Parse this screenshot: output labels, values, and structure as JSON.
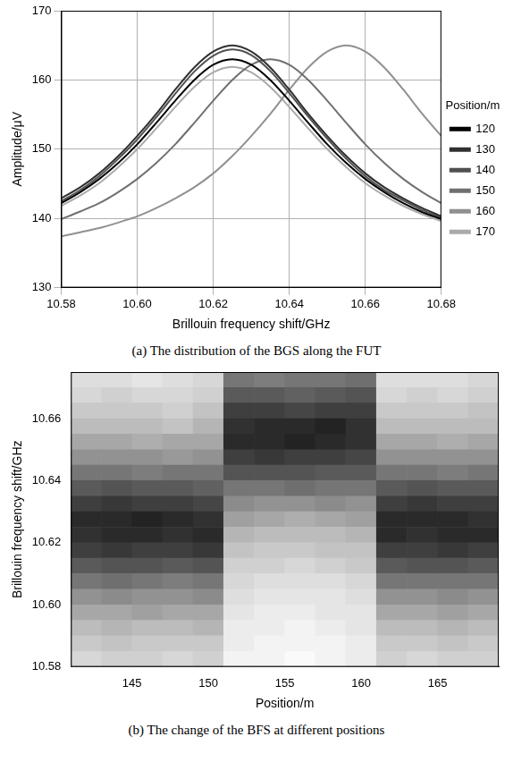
{
  "chart_data": [
    {
      "type": "line",
      "caption": "(a) The distribution of the BGS along the FUT",
      "x_label": "Brillouin frequency shift/GHz",
      "y_label": "Amplitude/μV",
      "legend_title": "Position/m",
      "legend": "right",
      "grid": true,
      "xlim": [
        10.58,
        10.68
      ],
      "xticks": [
        10.58,
        {
          "value": 10.6,
          "label": "10.60"
        },
        10.62,
        10.64,
        10.66,
        10.68
      ],
      "ylim": [
        130,
        170
      ],
      "yticks": [
        130,
        140,
        150,
        160,
        170
      ],
      "x": [
        10.58,
        10.585,
        10.59,
        10.595,
        10.6,
        10.605,
        10.61,
        10.615,
        10.62,
        10.625,
        10.63,
        10.635,
        10.64,
        10.645,
        10.65,
        10.655,
        10.66,
        10.665,
        10.67,
        10.675,
        10.68
      ],
      "series": [
        {
          "name": "120",
          "color": "#000000",
          "values": [
            142.2,
            143.8,
            145.7,
            148,
            150.7,
            153.8,
            157,
            160,
            162.2,
            163,
            162.2,
            160,
            157,
            153.8,
            150.7,
            148,
            145.7,
            143.8,
            142.2,
            140.9,
            139.9
          ]
        },
        {
          "name": "130",
          "color": "#303030",
          "values": [
            142.9,
            144.5,
            146.5,
            149,
            151.9,
            155.1,
            158.6,
            161.8,
            164.1,
            165,
            164.1,
            161.8,
            158.6,
            155.1,
            151.9,
            149,
            146.5,
            144.5,
            142.9,
            141.5,
            140.3
          ]
        },
        {
          "name": "140",
          "color": "#505050",
          "values": [
            142.5,
            144.1,
            146.1,
            148.6,
            151.4,
            154.6,
            158,
            161.2,
            163.5,
            164.4,
            163.6,
            161.3,
            158.1,
            154.7,
            151.5,
            148.6,
            146.1,
            144.1,
            142.6,
            141.2,
            140.1
          ]
        },
        {
          "name": "150",
          "color": "#707070",
          "values": [
            139.9,
            141,
            142.2,
            143.8,
            145.7,
            148,
            150.7,
            153.8,
            157,
            160,
            162.2,
            163,
            162.2,
            160,
            157,
            153.8,
            150.7,
            148,
            145.7,
            143.8,
            142.2
          ]
        },
        {
          "name": "160",
          "color": "#909090",
          "values": [
            137.4,
            138,
            138.6,
            139.4,
            140.3,
            141.5,
            142.9,
            144.5,
            146.5,
            149,
            151.9,
            155.1,
            158.6,
            161.8,
            164.1,
            165,
            164.1,
            161.8,
            158.6,
            155.1,
            151.9
          ]
        },
        {
          "name": "170",
          "color": "#aaaaaa",
          "values": [
            141.8,
            143.3,
            145.1,
            147.4,
            150,
            153,
            156.1,
            159,
            161.1,
            161.9,
            161.1,
            159,
            156.1,
            153,
            150,
            147.4,
            145.1,
            143.3,
            141.8,
            140.6,
            139.6
          ]
        }
      ]
    },
    {
      "type": "heatmap",
      "caption": "(b) The change of the BFS at different positions",
      "x_label": "Position/m",
      "y_label": "Brillouin frequency shift/GHz",
      "grid": false,
      "xlim": [
        141,
        169
      ],
      "xticks": [
        145,
        150,
        155,
        160,
        165
      ],
      "ylim": [
        10.58,
        10.675
      ],
      "yticks": [
        10.58,
        {
          "value": 10.6,
          "label": "10.60"
        },
        10.62,
        10.64,
        10.66
      ],
      "x": [
        142,
        144,
        146,
        148,
        150,
        152,
        154,
        156,
        158,
        160,
        162,
        164,
        166,
        168
      ],
      "y_bins": [
        10.58,
        10.585,
        10.59,
        10.595,
        10.6,
        10.605,
        10.61,
        10.615,
        10.62,
        10.625,
        10.63,
        10.635,
        10.64,
        10.645,
        10.65,
        10.655,
        10.66,
        10.665,
        10.67,
        10.675
      ],
      "cells": [
        [
          138,
          140,
          142,
          145,
          148,
          152,
          156,
          160,
          162,
          163,
          160,
          156,
          152,
          148,
          145,
          142,
          140,
          138,
          137
        ],
        [
          139,
          141,
          143,
          145,
          149,
          153,
          157,
          161,
          163,
          163,
          161,
          157,
          152,
          148,
          145,
          142,
          140,
          139,
          137
        ],
        [
          139,
          140,
          142,
          146,
          148,
          152,
          157,
          160,
          163,
          164,
          160,
          156,
          151,
          148,
          144,
          142,
          140,
          138,
          136
        ],
        [
          138,
          140,
          142,
          145,
          148,
          151,
          156,
          160,
          162,
          163,
          160,
          156,
          152,
          147,
          145,
          141,
          139,
          138,
          137
        ],
        [
          139,
          140,
          143,
          145,
          149,
          152,
          157,
          161,
          163,
          162,
          159,
          155,
          152,
          148,
          145,
          143,
          141,
          139,
          138
        ],
        [
          134,
          135,
          135,
          136,
          137,
          138,
          139,
          141,
          143,
          146,
          149,
          152,
          157,
          160,
          163,
          162,
          160,
          156,
          152
        ],
        [
          134,
          134,
          135,
          135,
          136,
          137,
          139,
          140,
          142,
          145,
          148,
          152,
          157,
          161,
          163,
          163,
          160,
          156,
          151
        ],
        [
          133,
          134,
          134,
          135,
          136,
          137,
          138,
          140,
          142,
          144,
          148,
          153,
          157,
          160,
          164,
          163,
          159,
          155,
          152
        ],
        [
          134,
          134,
          135,
          136,
          136,
          137,
          139,
          141,
          142,
          145,
          149,
          152,
          156,
          160,
          163,
          164,
          160,
          156,
          152
        ],
        [
          135,
          135,
          136,
          136,
          137,
          138,
          140,
          141,
          143,
          146,
          148,
          152,
          156,
          159,
          162,
          162,
          160,
          157,
          153
        ],
        [
          139,
          140,
          142,
          145,
          148,
          152,
          156,
          160,
          163,
          163,
          160,
          156,
          152,
          148,
          145,
          142,
          140,
          138,
          137
        ],
        [
          138,
          140,
          142,
          145,
          148,
          152,
          157,
          160,
          162,
          163,
          161,
          157,
          152,
          148,
          145,
          142,
          140,
          139,
          137
        ],
        [
          139,
          141,
          143,
          146,
          149,
          152,
          157,
          161,
          163,
          163,
          160,
          156,
          151,
          148,
          144,
          142,
          140,
          138,
          137
        ],
        [
          139,
          140,
          142,
          145,
          148,
          152,
          156,
          160,
          163,
          162,
          160,
          156,
          152,
          148,
          145,
          142,
          141,
          139,
          138
        ]
      ]
    }
  ]
}
